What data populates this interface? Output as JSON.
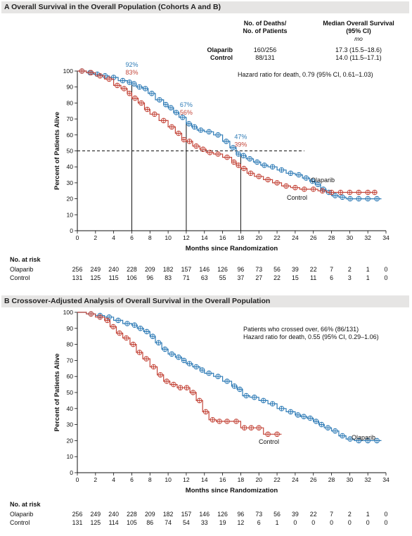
{
  "chart_data": [
    {
      "panel_title": "A  Overall Survival in the Overall Population (Cohorts A and B)",
      "type": "line",
      "xlabel": "Months since Randomization",
      "ylabel": "Percent of Patients Alive",
      "xlim": [
        0,
        34
      ],
      "ylim": [
        0,
        100
      ],
      "xticks": [
        0,
        2,
        4,
        6,
        8,
        10,
        12,
        14,
        16,
        18,
        20,
        22,
        24,
        26,
        28,
        30,
        32,
        34
      ],
      "yticks": [
        0,
        10,
        20,
        30,
        40,
        50,
        60,
        70,
        80,
        90,
        100
      ],
      "series": [
        {
          "name": "Olaparib",
          "color": "#2e7bb6",
          "x": [
            0,
            1,
            1.8,
            2.6,
            3.5,
            4.5,
            5.5,
            6,
            6.5,
            7.2,
            7.8,
            8.6,
            9.5,
            10,
            10.6,
            11.2,
            12,
            12.6,
            13.2,
            14,
            15,
            16,
            16.8,
            17.5,
            18,
            18.6,
            19.4,
            20.2,
            21,
            22,
            23,
            24,
            24.8,
            25.6,
            26.2,
            26.8,
            27.4,
            28,
            28.8,
            29.6,
            30.5,
            31.5,
            32.5,
            33.5
          ],
          "y": [
            100,
            99,
            98,
            97,
            96,
            94,
            93,
            92,
            90,
            89,
            86,
            82,
            79,
            77,
            74,
            71,
            67,
            65,
            63,
            62,
            60,
            56,
            52,
            48,
            47,
            45,
            43,
            41,
            40,
            38,
            36,
            35,
            33,
            31,
            29,
            26,
            24,
            22,
            21,
            20,
            20,
            20,
            20,
            20
          ]
        },
        {
          "name": "Control",
          "color": "#c4463a",
          "x": [
            0,
            1,
            2,
            3,
            4,
            4.8,
            5.5,
            6,
            6.7,
            7.4,
            8,
            9,
            10,
            10.8,
            11.5,
            12,
            12.7,
            13.5,
            14.2,
            15,
            16,
            17,
            17.5,
            18,
            18.7,
            19.5,
            20.5,
            21.5,
            22.5,
            23.5,
            24.5,
            25.5,
            26.5,
            27.5,
            28.5,
            29.5,
            30.5,
            31.5,
            32.5,
            33
          ],
          "y": [
            100,
            99,
            97,
            95,
            91,
            89,
            86,
            83,
            80,
            76,
            73,
            69,
            65,
            61,
            57,
            56,
            53,
            51,
            49,
            48,
            46,
            43,
            41,
            39,
            36,
            34,
            32,
            30,
            28,
            27,
            26,
            26,
            25,
            24,
            24,
            24,
            24,
            24,
            24,
            24
          ]
        }
      ],
      "reference": {
        "value": 50,
        "until_x": 25
      },
      "markers": [
        {
          "x": 6,
          "olaparib": "92%",
          "control": "83%"
        },
        {
          "x": 12,
          "olaparib": "67%",
          "control": "56%"
        },
        {
          "x": 18,
          "olaparib": "47%",
          "control": "39%"
        }
      ],
      "line_labels": {
        "olaparib": "Olaparib",
        "control": "Control"
      },
      "summary_table": {
        "col1_line1": "No. of Deaths/",
        "col1_line2": "No. of Patients",
        "col2_line1": "Median Overall Survival",
        "col2_line2": "(95% CI)",
        "col2_unit": "mo",
        "rows": [
          {
            "label": "Olaparib",
            "deaths": "160/256",
            "median": "17.3 (15.5–18.6)"
          },
          {
            "label": "Control",
            "deaths": "88/131",
            "median": "14.0 (11.5–17.1)"
          }
        ]
      },
      "annotation": "Hazard ratio for death, 0.79 (95% CI, 0.61–1.03)",
      "at_risk": {
        "title": "No. at risk",
        "rows": [
          {
            "label": "Olaparib",
            "values": [
              "256",
              "249",
              "240",
              "228",
              "209",
              "182",
              "157",
              "146",
              "126",
              "96",
              "73",
              "56",
              "39",
              "22",
              "7",
              "2",
              "1",
              "0"
            ]
          },
          {
            "label": "Control",
            "values": [
              "131",
              "125",
              "115",
              "106",
              "96",
              "83",
              "71",
              "63",
              "55",
              "37",
              "27",
              "22",
              "15",
              "11",
              "6",
              "3",
              "1",
              "0"
            ]
          }
        ]
      }
    },
    {
      "panel_title": "B  Crossover-Adjusted Analysis of Overall Survival in the Overall Population",
      "type": "line",
      "xlabel": "Months since Randomization",
      "ylabel": "Percent of Patients Alive",
      "xlim": [
        0,
        34
      ],
      "ylim": [
        0,
        100
      ],
      "xticks": [
        0,
        2,
        4,
        6,
        8,
        10,
        12,
        14,
        16,
        18,
        20,
        22,
        24,
        26,
        28,
        30,
        32,
        34
      ],
      "yticks": [
        0,
        10,
        20,
        30,
        40,
        50,
        60,
        70,
        80,
        90,
        100
      ],
      "series": [
        {
          "name": "Olaparib",
          "color": "#2e7bb6",
          "x": [
            0,
            1,
            2,
            3,
            4,
            5,
            6,
            6.6,
            7.3,
            8,
            8.6,
            9.3,
            10,
            10.8,
            11.5,
            12,
            12.7,
            13.5,
            14,
            15,
            16,
            17,
            17.6,
            18.2,
            19,
            20,
            21,
            22,
            23,
            24,
            24.6,
            25.3,
            26,
            26.6,
            27.2,
            28,
            28.8,
            29.6,
            30.5,
            31.5,
            32.5,
            33.5
          ],
          "y": [
            100,
            99,
            98,
            97,
            95,
            93,
            92,
            90,
            88,
            85,
            81,
            77,
            74,
            72,
            70,
            68,
            66,
            64,
            62,
            60,
            57,
            54,
            52,
            48,
            47,
            45,
            43,
            40,
            38,
            36,
            35,
            34,
            32,
            30,
            28,
            26,
            23,
            21,
            20,
            20,
            20,
            20
          ]
        },
        {
          "name": "Control",
          "color": "#c4463a",
          "x": [
            0,
            1,
            2,
            3,
            3.6,
            4.3,
            5,
            5.8,
            6.5,
            7.2,
            8,
            8.8,
            9.5,
            10.2,
            11,
            11.7,
            12.4,
            13.1,
            13.8,
            14.5,
            15.3,
            16,
            17,
            18,
            18.8,
            19.5,
            20.5,
            21.5,
            22.5
          ],
          "y": [
            100,
            99,
            97,
            95,
            91,
            87,
            84,
            80,
            75,
            71,
            66,
            61,
            57,
            55,
            53,
            53,
            50,
            45,
            38,
            33,
            32,
            32,
            32,
            28,
            28,
            28,
            24,
            24,
            24
          ]
        }
      ],
      "line_labels": {
        "olaparib": "Olaparib",
        "control": "Control"
      },
      "annotation_lines": [
        "Patients who crossed over, 66% (86/131)",
        "Hazard ratio for death, 0.55 (95% CI, 0.29–1.06)"
      ],
      "at_risk": {
        "title": "No. at risk",
        "rows": [
          {
            "label": "Olaparib",
            "values": [
              "256",
              "249",
              "240",
              "228",
              "209",
              "182",
              "157",
              "146",
              "126",
              "96",
              "73",
              "56",
              "39",
              "22",
              "7",
              "2",
              "1",
              "0"
            ]
          },
          {
            "label": "Control",
            "values": [
              "131",
              "125",
              "114",
              "105",
              "86",
              "74",
              "54",
              "33",
              "19",
              "12",
              "6",
              "1",
              "0",
              "0",
              "0",
              "0",
              "0",
              "0"
            ]
          }
        ]
      }
    }
  ]
}
